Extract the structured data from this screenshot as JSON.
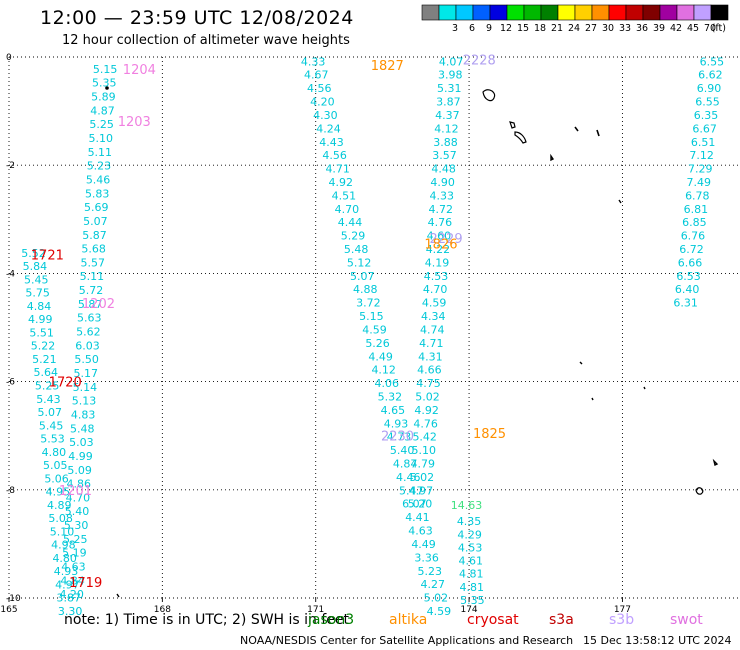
{
  "header": {
    "title": "12:00 — 23:59 UTC 12/08/2024",
    "subtitle": "12 hour collection of altimeter wave heights"
  },
  "colorbar": {
    "unit_label": "(ft)",
    "bins": [
      {
        "label": "",
        "color": "#808080"
      },
      {
        "label": "3",
        "color": "#00e8e8"
      },
      {
        "label": "6",
        "color": "#00c8ff"
      },
      {
        "label": "9",
        "color": "#0060ff"
      },
      {
        "label": "12",
        "color": "#0000e0"
      },
      {
        "label": "15",
        "color": "#00e000"
      },
      {
        "label": "18",
        "color": "#00b800"
      },
      {
        "label": "21",
        "color": "#008000"
      },
      {
        "label": "24",
        "color": "#ffff00"
      },
      {
        "label": "27",
        "color": "#ffd000"
      },
      {
        "label": "30",
        "color": "#ff9000"
      },
      {
        "label": "33",
        "color": "#ff0000"
      },
      {
        "label": "36",
        "color": "#c00000"
      },
      {
        "label": "39",
        "color": "#800000"
      },
      {
        "label": "42",
        "color": "#a000a0"
      },
      {
        "label": "45",
        "color": "#e070e0"
      },
      {
        "label": "70",
        "color": "#c0a0ff"
      },
      {
        "label": "",
        "color": "#000000"
      }
    ]
  },
  "footer": {
    "note": "note: 1) Time is in UTC; 2) SWH is in feet",
    "credit": "NOAA/NESDIS Center for Satellite Applications and Research",
    "generated": "15 Dec 13:58:12 UTC 2024",
    "satellites": [
      {
        "name": "jason3",
        "color": "#008000"
      },
      {
        "name": "altika",
        "color": "#ff9000"
      },
      {
        "name": "cryosat",
        "color": "#e00000"
      },
      {
        "name": "s3a",
        "color": "#c00000"
      },
      {
        "name": "s3b",
        "color": "#c0a0ff"
      },
      {
        "name": "swot",
        "color": "#e070e0"
      }
    ]
  },
  "chart_data": {
    "type": "scatter",
    "xlim": [
      165,
      179
    ],
    "ylim": [
      -10,
      0
    ],
    "x_ticks": [
      "165",
      "168",
      "171",
      "174",
      "177"
    ],
    "y_ticks": [
      "0",
      "-2",
      "-4",
      "-6",
      "-8",
      "-10"
    ],
    "grid": true,
    "colors": {
      "cyan": "#00c8d8",
      "green": "#40e080",
      "red": "#e00000",
      "orange": "#ff9000",
      "pink": "#f080e0",
      "lavender": "#b0a0f0",
      "coast": "#000000"
    },
    "time_labels": [
      {
        "text": "1204",
        "x": 167.55,
        "y": -0.22,
        "color": "pink"
      },
      {
        "text": "1203",
        "x": 167.45,
        "y": -1.18,
        "color": "pink"
      },
      {
        "text": "1721",
        "x": 165.75,
        "y": -3.65,
        "color": "red"
      },
      {
        "text": "1202",
        "x": 166.75,
        "y": -4.55,
        "color": "pink"
      },
      {
        "text": "1720",
        "x": 166.1,
        "y": -6.0,
        "color": "red"
      },
      {
        "text": "1201",
        "x": 166.3,
        "y": -8.0,
        "color": "pink"
      },
      {
        "text": "1719",
        "x": 166.5,
        "y": -9.7,
        "color": "red"
      },
      {
        "text": "1827",
        "x": 172.4,
        "y": -0.15,
        "color": "orange"
      },
      {
        "text": "2228",
        "x": 174.2,
        "y": -0.05,
        "color": "lavender"
      },
      {
        "text": "2229",
        "x": 173.55,
        "y": -3.35,
        "color": "lavender"
      },
      {
        "text": "1826",
        "x": 173.45,
        "y": -3.45,
        "color": "orange"
      },
      {
        "text": "2230",
        "x": 172.6,
        "y": -7.0,
        "color": "lavender"
      },
      {
        "text": "1825",
        "x": 174.4,
        "y": -6.95,
        "color": "orange"
      }
    ],
    "series": [
      {
        "name": "pass-1200",
        "color": "cyan",
        "x_start": 166.88,
        "x_step": -0.0172,
        "y_start": -0.22,
        "y_step": -0.2555,
        "values": [
          5.15,
          5.35,
          5.89,
          4.87,
          5.25,
          5.1,
          5.11,
          5.23,
          5.46,
          5.83,
          5.69,
          5.07,
          5.87,
          5.68,
          5.57,
          5.11,
          5.72,
          5.87,
          5.63,
          5.62,
          6.03,
          5.5,
          5.17,
          5.14,
          5.13,
          4.83,
          5.48,
          5.03,
          4.99,
          5.09,
          4.86,
          4.7,
          5.4,
          5.3,
          5.25,
          5.19,
          4.63,
          4.84,
          4.2
        ]
      },
      {
        "name": "pass-1720",
        "color": "cyan",
        "x_start": 165.48,
        "x_step": 0.0265,
        "y_start": -3.62,
        "y_step": -0.2452,
        "values": [
          5.52,
          5.84,
          5.45,
          5.75,
          4.84,
          4.99,
          5.51,
          5.22,
          5.21,
          5.64,
          5.25,
          5.43,
          5.07,
          5.45,
          5.53,
          4.8,
          5.05,
          5.06,
          4.95,
          4.89,
          5.08,
          5.1,
          4.98,
          4.8,
          4.93,
          4.97,
          3.87,
          3.3
        ]
      },
      {
        "name": "pass-1826",
        "color": "cyan",
        "x_start": 170.95,
        "x_step": 0.06,
        "y_start": -0.08,
        "y_step": -0.2478,
        "values": [
          4.33,
          4.67,
          4.56,
          4.2,
          4.3,
          4.24,
          4.43,
          4.56,
          4.71,
          4.92,
          4.51,
          4.7,
          4.44,
          5.29,
          5.48,
          5.12,
          5.07,
          4.88,
          3.72,
          5.15,
          4.59,
          5.26,
          4.49,
          4.12,
          4.06,
          5.32,
          4.65,
          4.93,
          4.73,
          5.4,
          4.87,
          4.46,
          5.47,
          6.07,
          4.41,
          4.63,
          4.49,
          3.36,
          5.23,
          4.27,
          5.02,
          4.59
        ]
      },
      {
        "name": "pass-2230",
        "color": "cyan",
        "x_start": 173.65,
        "x_step": -0.0185,
        "y_start": -0.08,
        "y_step": -0.2478,
        "values": [
          4.07,
          3.98,
          5.31,
          3.87,
          4.37,
          4.12,
          3.88,
          3.57,
          4.48,
          4.9,
          4.33,
          4.72,
          4.76,
          4.6,
          4.22,
          4.19,
          4.53,
          4.7,
          4.59,
          4.34,
          4.74,
          4.71,
          4.31,
          4.66,
          4.75,
          5.02,
          4.92,
          4.76,
          5.42,
          5.1,
          4.79,
          5.02,
          4.97,
          5.2
        ]
      },
      {
        "name": "pass-1825",
        "color": "cyan",
        "x_start": 174.0,
        "x_step": 0.0107,
        "y_start": -8.58,
        "y_step": -0.2425,
        "values": [
          4.35,
          4.29,
          4.53,
          4.61,
          4.81,
          4.81,
          5.35
        ]
      },
      {
        "name": "pass-1825-green",
        "color": "green",
        "points": [
          [
            173.95,
            -8.28,
            14.63
          ]
        ]
      },
      {
        "name": "pass-1827",
        "color": "cyan",
        "x_start": 178.75,
        "x_step": -0.0285,
        "y_start": -0.08,
        "y_step": -0.2478,
        "values": [
          6.55,
          6.62,
          6.9,
          6.55,
          6.35,
          6.67,
          6.51,
          7.12,
          7.29,
          7.49,
          6.78,
          6.81,
          6.85,
          6.76,
          6.72,
          6.66,
          6.53,
          6.4,
          6.31
        ]
      }
    ]
  }
}
